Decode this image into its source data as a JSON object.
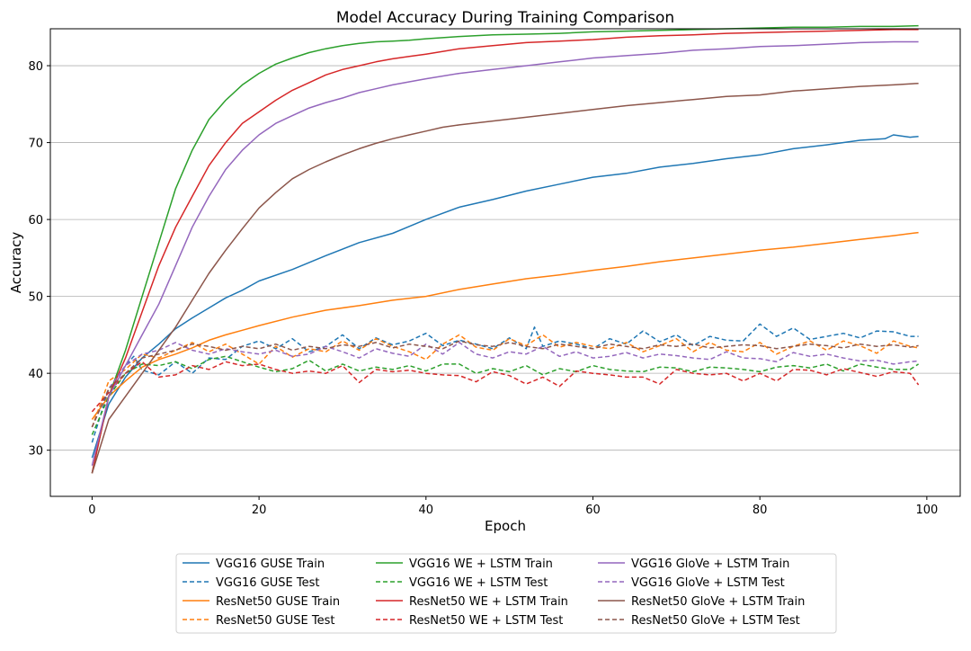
{
  "chart_data": {
    "type": "line",
    "title": "Model Accuracy During Training Comparison",
    "xlabel": "Epoch",
    "ylabel": "Accuracy",
    "xlim": [
      -5,
      104
    ],
    "ylim": [
      24,
      84.8
    ],
    "xticks": [
      0,
      20,
      40,
      60,
      80,
      100
    ],
    "yticks": [
      30,
      40,
      50,
      60,
      70,
      80
    ],
    "grid": "horizontal",
    "legend_placement": "bottom-center",
    "series": [
      {
        "name": "VGG16 GUSE Train",
        "color": "#1f77b4",
        "dashed": false,
        "x": [
          0,
          2,
          4,
          6,
          8,
          10,
          12,
          14,
          16,
          18,
          20,
          24,
          28,
          32,
          36,
          40,
          44,
          48,
          52,
          56,
          60,
          64,
          68,
          72,
          76,
          80,
          84,
          88,
          92,
          95,
          96,
          98,
          99
        ],
        "y": [
          29,
          36,
          39.5,
          42,
          43.8,
          45.8,
          47.2,
          48.5,
          49.8,
          50.8,
          52,
          53.5,
          55.3,
          57,
          58.2,
          60,
          61.6,
          62.6,
          63.7,
          64.6,
          65.5,
          66,
          66.8,
          67.3,
          67.9,
          68.4,
          69.2,
          69.7,
          70.3,
          70.5,
          71,
          70.7,
          70.8
        ]
      },
      {
        "name": "VGG16 GUSE Test",
        "color": "#1f77b4",
        "dashed": true,
        "x": [
          0,
          2,
          4,
          5,
          6,
          8,
          10,
          12,
          14,
          16,
          18,
          20,
          22,
          24,
          26,
          28,
          30,
          32,
          34,
          36,
          38,
          40,
          42,
          44,
          46,
          48,
          50,
          52,
          53,
          54,
          56,
          58,
          60,
          62,
          64,
          66,
          68,
          70,
          72,
          74,
          76,
          78,
          80,
          82,
          84,
          86,
          88,
          90,
          92,
          94,
          96,
          98,
          99
        ],
        "y": [
          31,
          38,
          41,
          42.2,
          40.4,
          39.8,
          41.5,
          40,
          42,
          41.8,
          43.5,
          44.2,
          43.2,
          44.5,
          42.8,
          43.5,
          45,
          43.2,
          44.6,
          43.7,
          44.2,
          45.2,
          43.6,
          44.3,
          43.8,
          43.2,
          44.6,
          43.2,
          46,
          43.5,
          44.2,
          43.8,
          43.2,
          44.5,
          43.8,
          45.5,
          44.1,
          45,
          43.6,
          44.8,
          44.3,
          44.2,
          46.4,
          44.8,
          45.9,
          44.4,
          44.8,
          45.2,
          44.6,
          45.5,
          45.4,
          44.8,
          44.8
        ]
      },
      {
        "name": "ResNet50 GUSE Train",
        "color": "#ff7f0e",
        "dashed": false,
        "x": [
          0,
          2,
          4,
          6,
          8,
          10,
          12,
          14,
          16,
          18,
          20,
          24,
          28,
          32,
          36,
          40,
          44,
          48,
          52,
          56,
          60,
          64,
          68,
          72,
          76,
          80,
          84,
          88,
          92,
          96,
          99
        ],
        "y": [
          34,
          37,
          39,
          40.8,
          41.8,
          42.5,
          43.3,
          44.3,
          45,
          45.6,
          46.2,
          47.3,
          48.2,
          48.8,
          49.5,
          50,
          50.9,
          51.6,
          52.3,
          52.8,
          53.4,
          53.9,
          54.5,
          55,
          55.5,
          56,
          56.4,
          56.9,
          57.4,
          57.9,
          58.3
        ]
      },
      {
        "name": "ResNet50 GUSE Test",
        "color": "#ff7f0e",
        "dashed": true,
        "x": [
          0,
          2,
          4,
          6,
          8,
          10,
          12,
          14,
          16,
          18,
          20,
          22,
          24,
          26,
          28,
          30,
          32,
          34,
          36,
          38,
          40,
          42,
          44,
          46,
          48,
          50,
          52,
          54,
          56,
          58,
          60,
          62,
          64,
          66,
          68,
          70,
          72,
          74,
          76,
          78,
          80,
          82,
          84,
          86,
          88,
          90,
          92,
          94,
          96,
          98,
          99
        ],
        "y": [
          33,
          39,
          40.5,
          42.5,
          42,
          43,
          44,
          42.8,
          43.8,
          42.5,
          41.2,
          43.5,
          42.1,
          43.2,
          42.8,
          44.2,
          43,
          44.5,
          43.5,
          42.8,
          41.8,
          43.8,
          45,
          43.4,
          43,
          44.5,
          43.6,
          45,
          43.4,
          44,
          43.5,
          43.2,
          44,
          42.8,
          43.6,
          44.5,
          42.8,
          44,
          43,
          42.8,
          44,
          42.5,
          43.5,
          44.2,
          43,
          44.2,
          43.6,
          42.6,
          44.2,
          43.5,
          43.3
        ]
      },
      {
        "name": "VGG16 WE + LSTM Train",
        "color": "#2ca02c",
        "dashed": false,
        "x": [
          0,
          2,
          4,
          6,
          8,
          10,
          12,
          14,
          16,
          18,
          20,
          22,
          24,
          26,
          28,
          30,
          32,
          34,
          36,
          38,
          40,
          44,
          48,
          52,
          56,
          60,
          64,
          68,
          72,
          76,
          80,
          84,
          88,
          92,
          96,
          99
        ],
        "y": [
          27,
          37,
          43,
          50,
          57,
          64,
          69,
          73,
          75.5,
          77.5,
          79,
          80.2,
          81,
          81.7,
          82.2,
          82.6,
          82.9,
          83.1,
          83.2,
          83.3,
          83.5,
          83.8,
          84,
          84.1,
          84.2,
          84.4,
          84.5,
          84.6,
          84.7,
          84.8,
          84.9,
          85,
          85,
          85.1,
          85.1,
          85.2
        ]
      },
      {
        "name": "VGG16 WE + LSTM Test",
        "color": "#2ca02c",
        "dashed": true,
        "x": [
          0,
          2,
          4,
          6,
          8,
          10,
          12,
          14,
          16,
          18,
          20,
          22,
          24,
          26,
          28,
          30,
          32,
          34,
          36,
          38,
          40,
          42,
          44,
          46,
          48,
          50,
          52,
          54,
          56,
          58,
          60,
          62,
          64,
          66,
          68,
          70,
          72,
          74,
          76,
          78,
          80,
          82,
          84,
          86,
          88,
          90,
          92,
          94,
          96,
          98,
          99
        ],
        "y": [
          32,
          37,
          40,
          41.2,
          41,
          41.5,
          40.6,
          41.8,
          42.2,
          41.5,
          40.8,
          40.2,
          40.6,
          41.7,
          40.3,
          41.2,
          40.3,
          40.8,
          40.5,
          41,
          40.3,
          41.2,
          41.2,
          40,
          40.6,
          40.2,
          41,
          39.8,
          40.6,
          40.2,
          41,
          40.5,
          40.3,
          40.2,
          40.8,
          40.7,
          40.2,
          40.8,
          40.7,
          40.5,
          40.2,
          40.8,
          41,
          40.7,
          41.2,
          40.3,
          41.2,
          40.8,
          40.5,
          40.5,
          41.2
        ]
      },
      {
        "name": "ResNet50 WE + LSTM Train",
        "color": "#d62728",
        "dashed": false,
        "x": [
          0,
          2,
          4,
          6,
          8,
          10,
          12,
          14,
          16,
          18,
          20,
          22,
          24,
          26,
          28,
          30,
          32,
          34,
          36,
          38,
          40,
          44,
          48,
          52,
          56,
          60,
          64,
          68,
          72,
          76,
          80,
          84,
          88,
          92,
          96,
          99
        ],
        "y": [
          27,
          37,
          42,
          48,
          54,
          59,
          63,
          67,
          70,
          72.5,
          74,
          75.5,
          76.8,
          77.8,
          78.8,
          79.5,
          80,
          80.5,
          80.9,
          81.2,
          81.5,
          82.2,
          82.6,
          83,
          83.2,
          83.4,
          83.7,
          83.9,
          84,
          84.2,
          84.3,
          84.4,
          84.5,
          84.6,
          84.7,
          84.7
        ]
      },
      {
        "name": "ResNet50 WE + LSTM Test",
        "color": "#d62728",
        "dashed": true,
        "x": [
          0,
          2,
          4,
          6,
          8,
          10,
          12,
          14,
          16,
          18,
          20,
          22,
          24,
          26,
          28,
          30,
          32,
          34,
          36,
          38,
          40,
          42,
          44,
          46,
          48,
          50,
          52,
          54,
          56,
          58,
          60,
          62,
          64,
          66,
          68,
          70,
          72,
          74,
          76,
          78,
          80,
          82,
          84,
          86,
          88,
          90,
          92,
          94,
          96,
          98,
          99
        ],
        "y": [
          35,
          37.5,
          40,
          41.5,
          39.5,
          39.8,
          41,
          40.5,
          41.5,
          41,
          41.2,
          40.5,
          40,
          40.3,
          40,
          41,
          38.8,
          40.5,
          40.2,
          40.4,
          40,
          39.8,
          39.7,
          38.9,
          40.2,
          39.7,
          38.6,
          39.5,
          38.3,
          40.3,
          40,
          39.8,
          39.5,
          39.5,
          38.6,
          40.5,
          40,
          39.8,
          40,
          39,
          40,
          39,
          40.5,
          40.4,
          39.8,
          40.6,
          40.1,
          39.6,
          40.2,
          40,
          38.5
        ]
      },
      {
        "name": "VGG16 GloVe + LSTM Train",
        "color": "#9467bd",
        "dashed": false,
        "x": [
          0,
          2,
          4,
          6,
          8,
          10,
          12,
          14,
          16,
          18,
          20,
          22,
          24,
          26,
          28,
          30,
          32,
          34,
          36,
          38,
          40,
          44,
          48,
          52,
          56,
          60,
          64,
          68,
          72,
          76,
          80,
          84,
          88,
          92,
          96,
          99
        ],
        "y": [
          28,
          37,
          41,
          45,
          49,
          54,
          59,
          63,
          66.5,
          69,
          71,
          72.5,
          73.5,
          74.5,
          75.2,
          75.8,
          76.5,
          77,
          77.5,
          77.9,
          78.3,
          79,
          79.5,
          80,
          80.5,
          81,
          81.3,
          81.6,
          82,
          82.2,
          82.5,
          82.6,
          82.8,
          83,
          83.1,
          83.1
        ]
      },
      {
        "name": "VGG16 GloVe + LSTM Test",
        "color": "#9467bd",
        "dashed": true,
        "x": [
          0,
          2,
          4,
          6,
          8,
          10,
          12,
          14,
          16,
          18,
          20,
          22,
          24,
          26,
          28,
          30,
          32,
          34,
          36,
          38,
          40,
          42,
          44,
          46,
          48,
          50,
          52,
          54,
          56,
          58,
          60,
          62,
          64,
          66,
          68,
          70,
          72,
          74,
          76,
          78,
          80,
          82,
          84,
          86,
          88,
          90,
          92,
          94,
          96,
          98,
          99
        ],
        "y": [
          33,
          38,
          41,
          42.5,
          43,
          44,
          43,
          42.5,
          43.2,
          42.8,
          42.5,
          43,
          42.2,
          42.5,
          43.5,
          42.8,
          42,
          43.2,
          42.6,
          42.2,
          43.8,
          42.5,
          44,
          42.5,
          42,
          42.8,
          42.5,
          43.5,
          42.2,
          42.8,
          42,
          42.2,
          42.7,
          42,
          42.5,
          42.3,
          42,
          41.8,
          42.8,
          42,
          41.9,
          41.5,
          42.7,
          42.2,
          42.5,
          42,
          41.6,
          41.7,
          41.2,
          41.5,
          41.6
        ]
      },
      {
        "name": "ResNet50 GloVe + LSTM Train",
        "color": "#8c564b",
        "dashed": false,
        "x": [
          0,
          2,
          4,
          6,
          8,
          10,
          12,
          14,
          16,
          18,
          20,
          22,
          24,
          26,
          28,
          30,
          32,
          34,
          36,
          38,
          40,
          42,
          44,
          48,
          52,
          56,
          60,
          64,
          68,
          72,
          76,
          80,
          84,
          88,
          92,
          96,
          99
        ],
        "y": [
          27,
          34,
          37,
          40,
          43,
          46,
          49.5,
          53,
          56,
          58.8,
          61.5,
          63.5,
          65.3,
          66.5,
          67.5,
          68.4,
          69.2,
          69.9,
          70.5,
          71,
          71.5,
          72,
          72.3,
          72.8,
          73.3,
          73.8,
          74.3,
          74.8,
          75.2,
          75.6,
          76,
          76.2,
          76.7,
          77,
          77.3,
          77.5,
          77.7
        ]
      },
      {
        "name": "ResNet50 GloVe + LSTM Test",
        "color": "#8c564b",
        "dashed": true,
        "x": [
          0,
          2,
          4,
          6,
          8,
          10,
          12,
          14,
          16,
          18,
          20,
          22,
          24,
          26,
          28,
          30,
          32,
          34,
          36,
          38,
          40,
          42,
          44,
          46,
          48,
          50,
          52,
          54,
          56,
          58,
          60,
          62,
          64,
          66,
          68,
          70,
          72,
          74,
          76,
          78,
          80,
          82,
          84,
          86,
          88,
          90,
          92,
          94,
          96,
          98,
          99
        ],
        "y": [
          33,
          38,
          40,
          42,
          42.5,
          43,
          43.8,
          43.5,
          43,
          43.5,
          43.2,
          43.8,
          43,
          43.5,
          43.2,
          43.7,
          43.5,
          44,
          43.3,
          43.8,
          43.5,
          43.2,
          44.2,
          43.7,
          43.5,
          44,
          43.5,
          43.2,
          43.8,
          43.5,
          43.2,
          43.8,
          43.5,
          43.2,
          43.7,
          43.5,
          43.8,
          43.3,
          43.5,
          43.7,
          43.6,
          43.2,
          43.5,
          43.8,
          43.6,
          43.3,
          43.8,
          43.5,
          43.7,
          43.4,
          43.6
        ]
      }
    ]
  }
}
